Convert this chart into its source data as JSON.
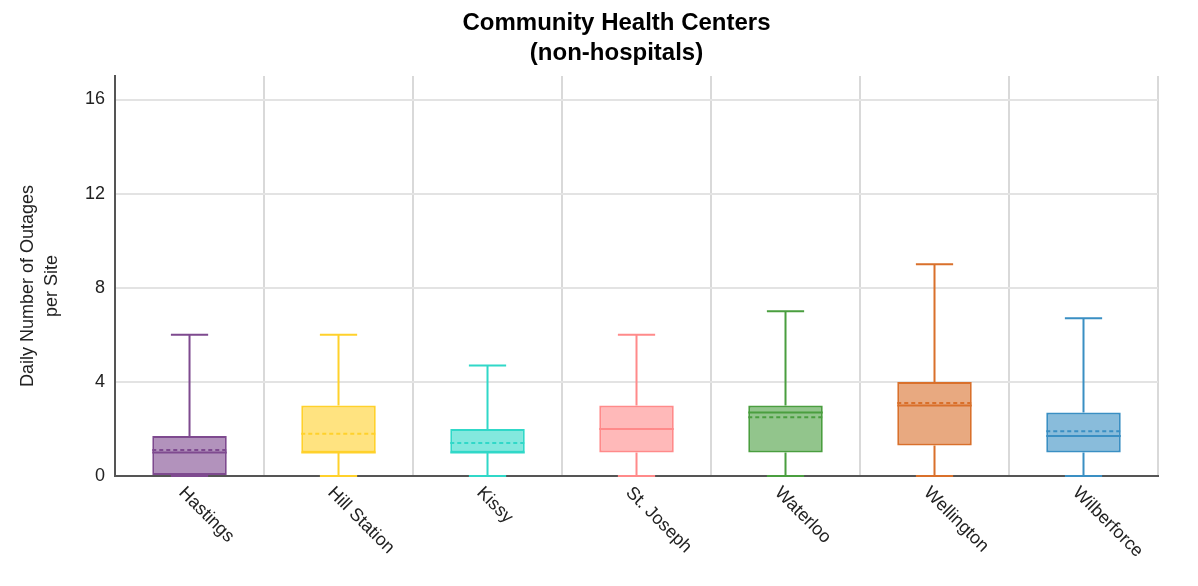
{
  "chart_data": {
    "type": "box",
    "title": "Community Health Centers\n(non-hospitals)",
    "ylabel": "Daily Number of Outages\nper Site",
    "categories": [
      "Hastings",
      "Hill Station",
      "Kissy",
      "St. Joseph",
      "Waterloo",
      "Wellington",
      "Wilberforce"
    ],
    "colors": [
      "#7e4a8f",
      "#ffd12b",
      "#30d8c8",
      "#ff8a8a",
      "#4a9e3f",
      "#d9702b",
      "#3a8fc3"
    ],
    "boxes": [
      {
        "low": 0,
        "q1": 0,
        "median": 1.0,
        "q3": 1.7,
        "high": 6,
        "mean": 1.1
      },
      {
        "low": 0,
        "q1": 1,
        "median": 1,
        "q3": 3,
        "high": 6,
        "mean": 1.8
      },
      {
        "low": 0,
        "q1": 1,
        "median": 1,
        "q3": 2,
        "high": 4.7,
        "mean": 1.4
      },
      {
        "low": 0,
        "q1": 1,
        "median": 2,
        "q3": 3,
        "high": 6
      },
      {
        "low": 0,
        "q1": 1,
        "median": 2.7,
        "q3": 3,
        "high": 7,
        "mean": 2.5
      },
      {
        "low": 0,
        "q1": 1.3,
        "median": 3,
        "q3": 4,
        "high": 9,
        "mean": 3.1
      },
      {
        "low": 0,
        "q1": 1,
        "median": 1.7,
        "q3": 2.7,
        "high": 6.7,
        "mean": 1.9
      }
    ],
    "ylim": [
      0,
      17
    ],
    "yticks": [
      0,
      4,
      8,
      12,
      16
    ],
    "grid": true
  }
}
